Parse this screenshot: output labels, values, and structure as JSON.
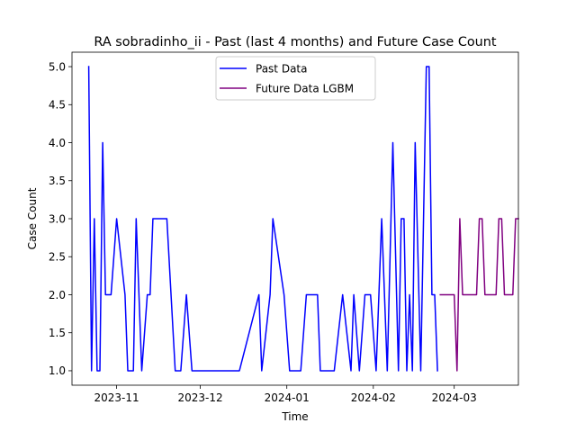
{
  "chart_data": {
    "type": "line",
    "title": "RA sobradinho_ii - Past (last 4 months) and Future Case Count",
    "xlabel": "Time",
    "ylabel": "Case Count",
    "x_type": "date",
    "xlim": [
      "2023-10-16",
      "2024-03-24"
    ],
    "ylim": [
      0.81,
      5.19
    ],
    "x_ticks": [
      {
        "date": "2023-11-01",
        "label": "2023-11"
      },
      {
        "date": "2023-12-01",
        "label": "2023-12"
      },
      {
        "date": "2024-01-01",
        "label": "2024-01"
      },
      {
        "date": "2024-02-01",
        "label": "2024-02"
      },
      {
        "date": "2024-03-01",
        "label": "2024-03"
      }
    ],
    "y_ticks": [
      1.0,
      1.5,
      2.0,
      2.5,
      3.0,
      3.5,
      4.0,
      4.5,
      5.0
    ],
    "y_tick_labels": [
      "1.0",
      "1.5",
      "2.0",
      "2.5",
      "3.0",
      "3.5",
      "4.0",
      "4.5",
      "5.0"
    ],
    "grid": false,
    "legend_position": "upper center",
    "series": [
      {
        "name": "Past Data",
        "color": "#0000ff",
        "points": [
          [
            "2023-10-22",
            5
          ],
          [
            "2023-10-23",
            1
          ],
          [
            "2023-10-24",
            3
          ],
          [
            "2023-10-25",
            1
          ],
          [
            "2023-10-26",
            1
          ],
          [
            "2023-10-27",
            4
          ],
          [
            "2023-10-28",
            2
          ],
          [
            "2023-10-29",
            2
          ],
          [
            "2023-10-30",
            2
          ],
          [
            "2023-11-01",
            3
          ],
          [
            "2023-11-04",
            2
          ],
          [
            "2023-11-05",
            1
          ],
          [
            "2023-11-06",
            1
          ],
          [
            "2023-11-07",
            1
          ],
          [
            "2023-11-08",
            3
          ],
          [
            "2023-11-10",
            1
          ],
          [
            "2023-11-12",
            2
          ],
          [
            "2023-11-13",
            2
          ],
          [
            "2023-11-14",
            3
          ],
          [
            "2023-11-15",
            3
          ],
          [
            "2023-11-16",
            3
          ],
          [
            "2023-11-17",
            3
          ],
          [
            "2023-11-18",
            3
          ],
          [
            "2023-11-19",
            3
          ],
          [
            "2023-11-22",
            1
          ],
          [
            "2023-11-23",
            1
          ],
          [
            "2023-11-24",
            1
          ],
          [
            "2023-11-26",
            2
          ],
          [
            "2023-11-28",
            1
          ],
          [
            "2023-12-01",
            1
          ],
          [
            "2023-12-05",
            1
          ],
          [
            "2023-12-10",
            1
          ],
          [
            "2023-12-15",
            1
          ],
          [
            "2023-12-22",
            2
          ],
          [
            "2023-12-23",
            1
          ],
          [
            "2023-12-26",
            2
          ],
          [
            "2023-12-27",
            3
          ],
          [
            "2023-12-31",
            2
          ],
          [
            "2024-01-02",
            1
          ],
          [
            "2024-01-06",
            1
          ],
          [
            "2024-01-08",
            2
          ],
          [
            "2024-01-12",
            2
          ],
          [
            "2024-01-13",
            1
          ],
          [
            "2024-01-18",
            1
          ],
          [
            "2024-01-21",
            2
          ],
          [
            "2024-01-24",
            1
          ],
          [
            "2024-01-25",
            2
          ],
          [
            "2024-01-27",
            1
          ],
          [
            "2024-01-29",
            2
          ],
          [
            "2024-01-31",
            2
          ],
          [
            "2024-02-02",
            1
          ],
          [
            "2024-02-03",
            2
          ],
          [
            "2024-02-04",
            3
          ],
          [
            "2024-02-05",
            2
          ],
          [
            "2024-02-06",
            1
          ],
          [
            "2024-02-08",
            4
          ],
          [
            "2024-02-10",
            1
          ],
          [
            "2024-02-11",
            3
          ],
          [
            "2024-02-12",
            3
          ],
          [
            "2024-02-13",
            1
          ],
          [
            "2024-02-14",
            2
          ],
          [
            "2024-02-15",
            1
          ],
          [
            "2024-02-16",
            4
          ],
          [
            "2024-02-18",
            1
          ],
          [
            "2024-02-20",
            5
          ],
          [
            "2024-02-21",
            5
          ],
          [
            "2024-02-22",
            2
          ],
          [
            "2024-02-23",
            2
          ],
          [
            "2024-02-24",
            1
          ]
        ]
      },
      {
        "name": "Future Data LGBM",
        "color": "#800080",
        "points": [
          [
            "2024-02-25",
            2
          ],
          [
            "2024-02-26",
            2
          ],
          [
            "2024-02-27",
            2
          ],
          [
            "2024-02-28",
            2
          ],
          [
            "2024-02-29",
            2
          ],
          [
            "2024-03-01",
            2
          ],
          [
            "2024-03-02",
            1
          ],
          [
            "2024-03-03",
            3
          ],
          [
            "2024-03-04",
            2
          ],
          [
            "2024-03-05",
            2
          ],
          [
            "2024-03-06",
            2
          ],
          [
            "2024-03-07",
            2
          ],
          [
            "2024-03-08",
            2
          ],
          [
            "2024-03-09",
            2
          ],
          [
            "2024-03-10",
            3
          ],
          [
            "2024-03-11",
            3
          ],
          [
            "2024-03-12",
            2
          ],
          [
            "2024-03-13",
            2
          ],
          [
            "2024-03-14",
            2
          ],
          [
            "2024-03-15",
            2
          ],
          [
            "2024-03-16",
            2
          ],
          [
            "2024-03-17",
            3
          ],
          [
            "2024-03-18",
            3
          ],
          [
            "2024-03-19",
            2
          ],
          [
            "2024-03-20",
            2
          ],
          [
            "2024-03-21",
            2
          ],
          [
            "2024-03-22",
            2
          ],
          [
            "2024-03-23",
            3
          ],
          [
            "2024-03-24",
            3
          ]
        ]
      }
    ]
  }
}
